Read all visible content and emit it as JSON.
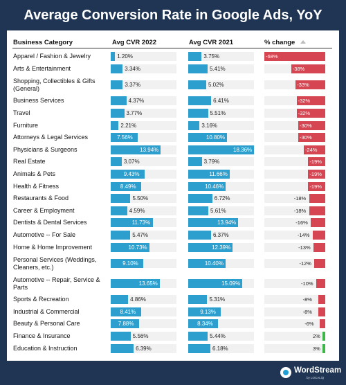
{
  "title": "Average Conversion Rate in Google Ads, YoY",
  "logo": {
    "name": "WordStream",
    "sub": "by LOCALiQ"
  },
  "colors": {
    "background": "#1f3553",
    "bar_blue": "#2d9fcf",
    "negative_red": "#d64552",
    "positive_green": "#3fb54a"
  },
  "chart_data": {
    "type": "table",
    "headers": [
      "Business Category",
      "Avg CVR 2022",
      "Avg CVR 2021",
      "% change"
    ],
    "sort_column": "% change",
    "sort_icon": "sort-ascending-icon",
    "units": {
      "cvr": "%",
      "change": "%"
    },
    "rows": [
      {
        "category": "Apparel / Fashion & Jewelry",
        "cvr_2022": "1.20%",
        "cvr_2021": "3.75%",
        "change": "-68%",
        "cvr_2022_value": 1.2,
        "cvr_2021_value": 3.75,
        "change_value": -68
      },
      {
        "category": "Arts & Entertainment",
        "cvr_2022": "3.34%",
        "cvr_2021": "5.41%",
        "change": "-38%",
        "cvr_2022_value": 3.34,
        "cvr_2021_value": 5.41,
        "change_value": -38
      },
      {
        "category": "Shopping, Collectibles & Gifts (General)",
        "cvr_2022": "3.37%",
        "cvr_2021": "5.02%",
        "change": "-33%",
        "cvr_2022_value": 3.37,
        "cvr_2021_value": 5.02,
        "change_value": -33
      },
      {
        "category": "Business Services",
        "cvr_2022": "4.37%",
        "cvr_2021": "6.41%",
        "change": "-32%",
        "cvr_2022_value": 4.37,
        "cvr_2021_value": 6.41,
        "change_value": -32
      },
      {
        "category": "Travel",
        "cvr_2022": "3.77%",
        "cvr_2021": "5.51%",
        "change": "-32%",
        "cvr_2022_value": 3.77,
        "cvr_2021_value": 5.51,
        "change_value": -32
      },
      {
        "category": "Furniture",
        "cvr_2022": "2.21%",
        "cvr_2021": "3.16%",
        "change": "-30%",
        "cvr_2022_value": 2.21,
        "cvr_2021_value": 3.16,
        "change_value": -30
      },
      {
        "category": "Attorneys & Legal Services",
        "cvr_2022": "7.56%",
        "cvr_2021": "10.80%",
        "change": "-30%",
        "cvr_2022_value": 7.56,
        "cvr_2021_value": 10.8,
        "change_value": -30
      },
      {
        "category": "Physicians & Surgeons",
        "cvr_2022": "13.94%",
        "cvr_2021": "18.36%",
        "change": "-24%",
        "cvr_2022_value": 13.94,
        "cvr_2021_value": 18.36,
        "change_value": -24
      },
      {
        "category": "Real Estate",
        "cvr_2022": "3.07%",
        "cvr_2021": "3.79%",
        "change": "-19%",
        "cvr_2022_value": 3.07,
        "cvr_2021_value": 3.79,
        "change_value": -19
      },
      {
        "category": "Animals & Pets",
        "cvr_2022": "9.43%",
        "cvr_2021": "11.66%",
        "change": "-19%",
        "cvr_2022_value": 9.43,
        "cvr_2021_value": 11.66,
        "change_value": -19
      },
      {
        "category": "Health & Fitness",
        "cvr_2022": "8.49%",
        "cvr_2021": "10.46%",
        "change": "-19%",
        "cvr_2022_value": 8.49,
        "cvr_2021_value": 10.46,
        "change_value": -19
      },
      {
        "category": "Restaurants & Food",
        "cvr_2022": "5.50%",
        "cvr_2021": "6.72%",
        "change": "-18%",
        "cvr_2022_value": 5.5,
        "cvr_2021_value": 6.72,
        "change_value": -18
      },
      {
        "category": "Career & Employment",
        "cvr_2022": "4.59%",
        "cvr_2021": "5.61%",
        "change": "-18%",
        "cvr_2022_value": 4.59,
        "cvr_2021_value": 5.61,
        "change_value": -18
      },
      {
        "category": "Dentists & Dental Services",
        "cvr_2022": "11.73%",
        "cvr_2021": "13.94%",
        "change": "-16%",
        "cvr_2022_value": 11.73,
        "cvr_2021_value": 13.94,
        "change_value": -16
      },
      {
        "category": "Automotive -- For Sale",
        "cvr_2022": "5.47%",
        "cvr_2021": "6.37%",
        "change": "-14%",
        "cvr_2022_value": 5.47,
        "cvr_2021_value": 6.37,
        "change_value": -14
      },
      {
        "category": "Home & Home Improvement",
        "cvr_2022": "10.73%",
        "cvr_2021": "12.39%",
        "change": "-13%",
        "cvr_2022_value": 10.73,
        "cvr_2021_value": 12.39,
        "change_value": -13
      },
      {
        "category": "Personal Services (Weddings, Cleaners, etc.)",
        "cvr_2022": "9.10%",
        "cvr_2021": "10.40%",
        "change": "-12%",
        "cvr_2022_value": 9.1,
        "cvr_2021_value": 10.4,
        "change_value": -12
      },
      {
        "category": "Automotive -- Repair, Service & Parts",
        "cvr_2022": "13.65%",
        "cvr_2021": "15.09%",
        "change": "-10%",
        "cvr_2022_value": 13.65,
        "cvr_2021_value": 15.09,
        "change_value": -10
      },
      {
        "category": "Sports & Recreation",
        "cvr_2022": "4.86%",
        "cvr_2021": "5.31%",
        "change": "-8%",
        "cvr_2022_value": 4.86,
        "cvr_2021_value": 5.31,
        "change_value": -8
      },
      {
        "category": "Industrial & Commercial",
        "cvr_2022": "8.41%",
        "cvr_2021": "9.13%",
        "change": "-8%",
        "cvr_2022_value": 8.41,
        "cvr_2021_value": 9.13,
        "change_value": -8
      },
      {
        "category": "Beauty & Personal Care",
        "cvr_2022": "7.88%",
        "cvr_2021": "8.34%",
        "change": "-6%",
        "cvr_2022_value": 7.88,
        "cvr_2021_value": 8.34,
        "change_value": -6
      },
      {
        "category": "Finance & Insurance",
        "cvr_2022": "5.56%",
        "cvr_2021": "5.44%",
        "change": "2%",
        "cvr_2022_value": 5.56,
        "cvr_2021_value": 5.44,
        "change_value": 2
      },
      {
        "category": "Education & Instruction",
        "cvr_2022": "6.39%",
        "cvr_2021": "6.18%",
        "change": "3%",
        "cvr_2022_value": 6.39,
        "cvr_2021_value": 6.18,
        "change_value": 3
      }
    ]
  }
}
